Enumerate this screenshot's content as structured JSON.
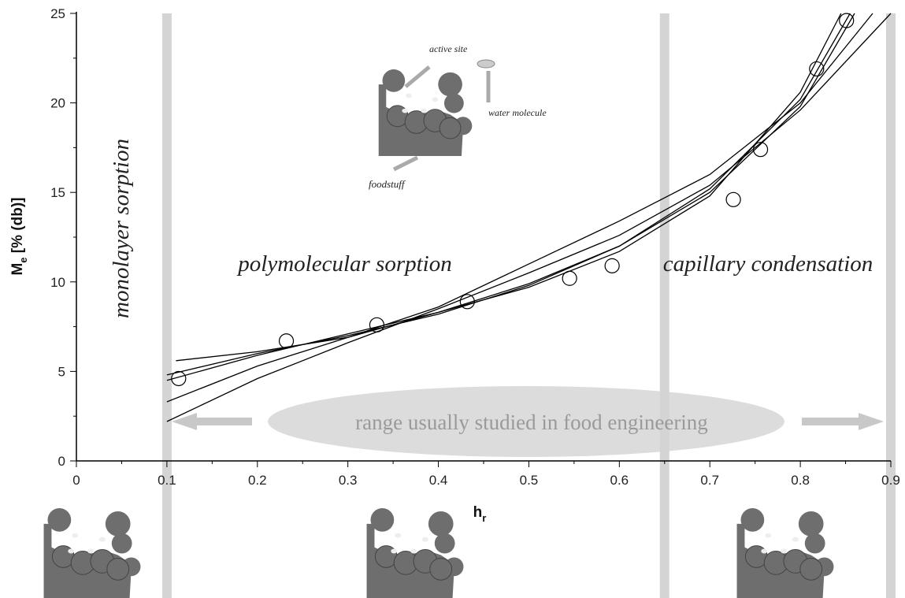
{
  "chart_data": {
    "type": "scatter",
    "xlabel": {
      "main": "h",
      "sub": "r"
    },
    "ylabel": {
      "main": "M",
      "sub": "e",
      "rest": " [% (db)]"
    },
    "xlim": [
      0,
      0.9
    ],
    "ylim": [
      0,
      25
    ],
    "xticks": [
      0,
      0.1,
      0.2,
      0.3,
      0.4,
      0.5,
      0.6,
      0.7,
      0.8,
      0.9
    ],
    "yticks": [
      0,
      5,
      10,
      15,
      20,
      25
    ],
    "x": [
      0.113,
      0.232,
      0.332,
      0.432,
      0.545,
      0.592,
      0.726,
      0.756,
      0.818,
      0.851
    ],
    "values": [
      4.6,
      6.7,
      7.6,
      8.9,
      10.2,
      10.9,
      14.6,
      17.4,
      21.9,
      24.6
    ],
    "color": "#000000",
    "fits": [
      {
        "x": [
          0.1,
          0.2,
          0.3,
          0.4,
          0.5,
          0.6,
          0.7,
          0.8,
          0.9
        ],
        "values": [
          2.2,
          4.6,
          6.6,
          8.5,
          10.5,
          12.6,
          15.4,
          19.6,
          25
        ]
      },
      {
        "x": [
          0.1,
          0.2,
          0.3,
          0.4,
          0.5,
          0.6,
          0.7,
          0.8,
          0.86
        ],
        "values": [
          3.3,
          5.3,
          6.9,
          8.3,
          9.9,
          12.0,
          15.0,
          19.8,
          25
        ]
      },
      {
        "x": [
          0.1,
          0.2,
          0.3,
          0.4,
          0.5,
          0.6,
          0.7,
          0.8,
          0.855
        ],
        "values": [
          4.8,
          6.0,
          7.0,
          8.2,
          9.8,
          12.0,
          15.2,
          20.2,
          25
        ]
      },
      {
        "x": [
          0.11,
          0.2,
          0.3,
          0.4,
          0.5,
          0.6,
          0.7,
          0.8,
          0.88
        ],
        "values": [
          5.6,
          6.1,
          6.9,
          8.6,
          11.0,
          13.4,
          16.0,
          20.0,
          25
        ]
      },
      {
        "x": [
          0.1,
          0.2,
          0.3,
          0.4,
          0.5,
          0.6,
          0.7,
          0.8,
          0.845
        ],
        "values": [
          4.5,
          5.9,
          7.1,
          8.3,
          9.7,
          11.7,
          14.8,
          20.6,
          25
        ]
      }
    ],
    "region_bounds": [
      0.1,
      0.65,
      0.9
    ],
    "annotations": {
      "monolayer": "monolayer sorption",
      "polymolecular": "polymolecular sorption",
      "capillary": "capillary condensation",
      "range": "range usually studied in food engineering",
      "active_site": "active site",
      "water_molecule": "water molecule",
      "foodstuff": "foodstuff"
    }
  }
}
